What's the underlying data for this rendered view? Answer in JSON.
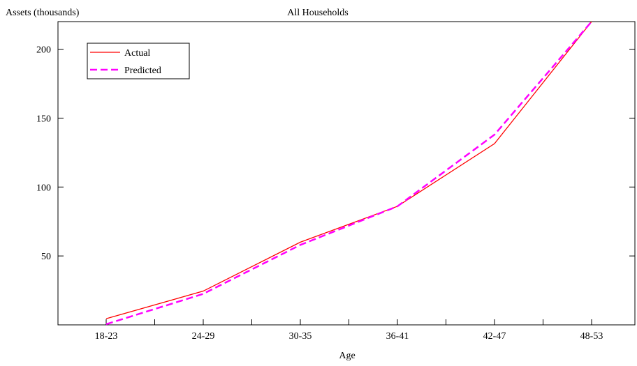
{
  "chart_data": {
    "type": "line",
    "title": "All Households",
    "xlabel": "Age",
    "ylabel": "Assets (thousands)",
    "categories": [
      "18-23",
      "24-29",
      "30-35",
      "36-41",
      "42-47",
      "48-53"
    ],
    "yticks": [
      50,
      100,
      150,
      200
    ],
    "ylim": [
      0,
      220
    ],
    "grid": false,
    "legend_position": "top-left",
    "series": [
      {
        "name": "Actual",
        "values": [
          4.5,
          24.5,
          60,
          86,
          131.5,
          220
        ],
        "color": "#ff0000",
        "dash": "solid"
      },
      {
        "name": "Predicted",
        "values": [
          0.5,
          22.5,
          58,
          86,
          138,
          220
        ],
        "color": "#ff00ff",
        "dash": "dashed"
      }
    ]
  }
}
